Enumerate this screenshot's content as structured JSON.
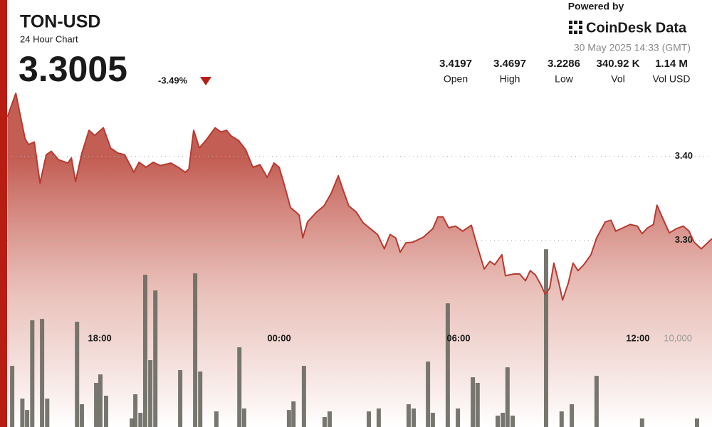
{
  "chart_data": {
    "type": "line",
    "title": "TON-USD",
    "subtitle": "24 Hour Chart",
    "price": "3.3005",
    "change": "-3.49%",
    "powered_by": "Powered by",
    "brand": "CoinDesk Data",
    "timestamp": "30 May 2025 14:33 (GMT)",
    "stats": [
      {
        "value": "3.4197",
        "label": "Open"
      },
      {
        "value": "3.4697",
        "label": "High"
      },
      {
        "value": "3.2286",
        "label": "Low"
      },
      {
        "value": "340.92 K",
        "label": "Vol"
      },
      {
        "value": "1.14 M",
        "label": "Vol USD"
      }
    ],
    "xlim": [
      14.9,
      38.48
    ],
    "xticks": [
      {
        "value": 18,
        "label": "18:00"
      },
      {
        "value": 24,
        "label": "00:00"
      },
      {
        "value": 30,
        "label": "06:00"
      },
      {
        "value": 36,
        "label": "12:00"
      }
    ],
    "ylim": [
      3.078,
      3.586
    ],
    "yticks": [
      {
        "value": 3.4,
        "label": "3.40"
      },
      {
        "value": 3.3,
        "label": "3.30"
      }
    ],
    "y2lim": [
      0,
      48390
    ],
    "y2ticks": [
      {
        "value": 10000,
        "label": "10,000"
      }
    ],
    "grid": true,
    "series": [
      {
        "type": "area",
        "color": "#b83a30",
        "x": [
          14.91,
          15.19,
          15.5,
          15.62,
          15.81,
          16.0,
          16.21,
          16.38,
          16.62,
          16.93,
          17.05,
          17.19,
          17.4,
          17.64,
          17.83,
          18.12,
          18.36,
          18.6,
          18.83,
          19.14,
          19.31,
          19.55,
          19.79,
          20.02,
          20.38,
          20.62,
          20.86,
          20.98,
          21.14,
          21.33,
          21.57,
          21.86,
          22.05,
          22.24,
          22.4,
          22.64,
          22.88,
          23.12,
          23.36,
          23.6,
          23.83,
          24.0,
          24.19,
          24.38,
          24.55,
          24.67,
          24.79,
          24.95,
          25.26,
          25.5,
          25.74,
          25.98,
          26.1,
          26.33,
          26.57,
          26.81,
          27.05,
          27.29,
          27.52,
          27.71,
          27.9,
          28.05,
          28.24,
          28.48,
          28.83,
          29.14,
          29.31,
          29.48,
          29.67,
          29.9,
          30.14,
          30.43,
          30.62,
          30.86,
          31.05,
          31.21,
          31.45,
          31.57,
          31.86,
          32.05,
          32.24,
          32.4,
          32.57,
          32.76,
          32.9,
          33.05,
          33.19,
          33.36,
          33.48,
          33.67,
          33.83,
          34.0,
          34.19,
          34.43,
          34.62,
          34.91,
          35.1,
          35.26,
          35.5,
          35.74,
          35.98,
          36.14,
          36.33,
          36.52,
          36.64,
          36.81,
          37.05,
          37.29,
          37.52,
          37.71,
          37.88,
          38.12,
          38.48
        ],
        "values": [
          3.447,
          3.475,
          3.421,
          3.414,
          3.417,
          3.368,
          3.402,
          3.406,
          3.396,
          3.392,
          3.398,
          3.37,
          3.404,
          3.431,
          3.425,
          3.434,
          3.41,
          3.404,
          3.402,
          3.381,
          3.393,
          3.387,
          3.393,
          3.389,
          3.392,
          3.387,
          3.381,
          3.385,
          3.431,
          3.41,
          3.42,
          3.434,
          3.429,
          3.431,
          3.424,
          3.419,
          3.408,
          3.387,
          3.39,
          3.375,
          3.392,
          3.387,
          3.364,
          3.339,
          3.334,
          3.33,
          3.303,
          3.322,
          3.334,
          3.341,
          3.356,
          3.377,
          3.364,
          3.341,
          3.334,
          3.321,
          3.314,
          3.307,
          3.29,
          3.307,
          3.303,
          3.286,
          3.297,
          3.298,
          3.304,
          3.314,
          3.328,
          3.328,
          3.315,
          3.317,
          3.311,
          3.318,
          3.294,
          3.266,
          3.275,
          3.271,
          3.283,
          3.258,
          3.26,
          3.26,
          3.252,
          3.264,
          3.259,
          3.247,
          3.236,
          3.243,
          3.273,
          3.249,
          3.229,
          3.249,
          3.273,
          3.264,
          3.271,
          3.283,
          3.303,
          3.322,
          3.324,
          3.311,
          3.315,
          3.319,
          3.317,
          3.308,
          3.315,
          3.319,
          3.342,
          3.328,
          3.309,
          3.314,
          3.317,
          3.311,
          3.298,
          3.29,
          3.302
        ]
      },
      {
        "type": "bar",
        "axis": "y2",
        "color": "#6b6b63",
        "x": [
          15.07,
          15.41,
          15.57,
          15.74,
          16.07,
          16.24,
          17.24,
          17.4,
          17.88,
          18.02,
          18.21,
          19.07,
          19.19,
          19.36,
          19.52,
          19.69,
          19.86,
          20.69,
          21.19,
          21.36,
          21.9,
          22.67,
          22.83,
          24.33,
          24.48,
          24.83,
          25.52,
          25.69,
          27.0,
          27.33,
          28.33,
          28.5,
          28.98,
          29.14,
          29.64,
          29.98,
          30.48,
          30.64,
          31.31,
          31.48,
          31.64,
          31.81,
          32.93,
          33.45,
          33.79,
          34.62,
          36.14,
          37.98
        ],
        "values": [
          6930,
          3220,
          1930,
          12090,
          12250,
          3220,
          11930,
          2580,
          5000,
          5960,
          3550,
          970,
          3710,
          1610,
          17250,
          7580,
          15480,
          6450,
          17410,
          6290,
          1770,
          9030,
          2100,
          1930,
          2900,
          6930,
          1130,
          1770,
          1770,
          2100,
          2580,
          2100,
          7420,
          1610,
          14020,
          2100,
          5640,
          5000,
          1290,
          1610,
          6770,
          1290,
          20150,
          1770,
          2580,
          5800,
          970,
          970
        ]
      }
    ]
  }
}
